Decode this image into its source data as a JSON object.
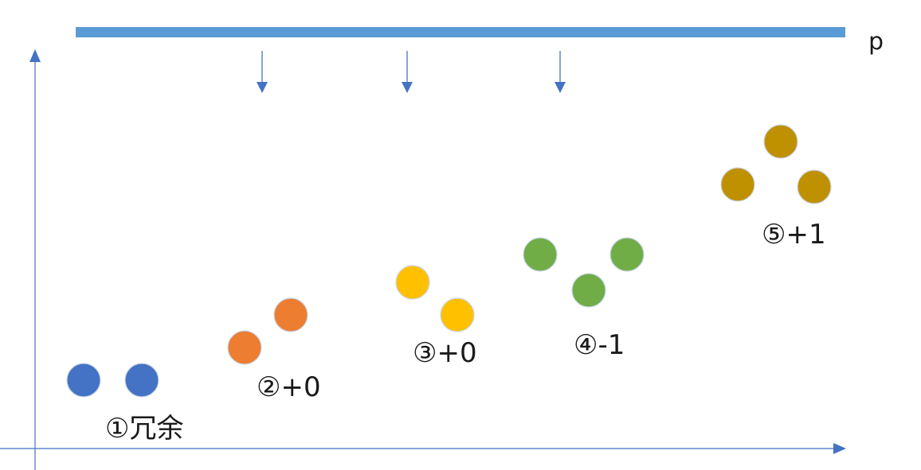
{
  "threshold_label": "p",
  "pointer_count": 3,
  "colors": {
    "axis": "#4472c4",
    "bar": "#5b9bd5",
    "group_1": "#4472c4",
    "group_2": "#ed7d31",
    "group_3": "#ffc000",
    "group_4": "#70ad47",
    "group_5": "#bf9000"
  },
  "groups": [
    {
      "label": "①冗余",
      "dot_count": 2,
      "color": "#4472c4"
    },
    {
      "label": "②+0",
      "dot_count": 2,
      "color": "#ed7d31"
    },
    {
      "label": "③+0",
      "dot_count": 2,
      "color": "#ffc000"
    },
    {
      "label": "④-1",
      "dot_count": 3,
      "color": "#70ad47"
    },
    {
      "label": "⑤+1",
      "dot_count": 3,
      "color": "#bf9000"
    }
  ]
}
